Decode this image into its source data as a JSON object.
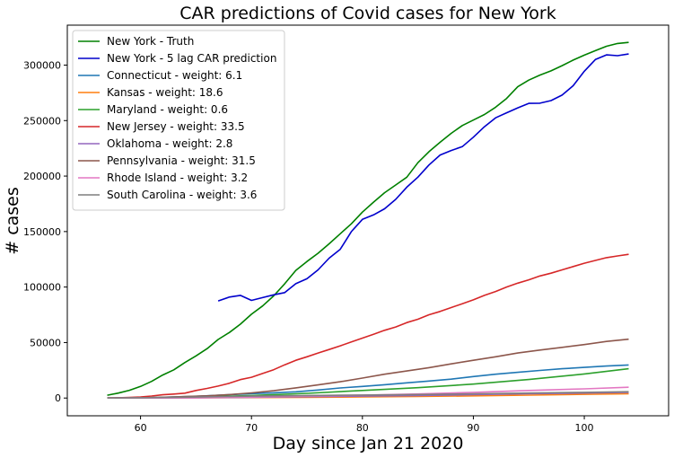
{
  "chart_data": {
    "type": "line",
    "title": "CAR predictions of Covid cases for New York",
    "xlabel": "Day since Jan 21 2020",
    "ylabel": "# cases",
    "xlim": [
      53.4,
      107.6
    ],
    "ylim": [
      -16000,
      336000
    ],
    "x_ticks": [
      60,
      70,
      80,
      90,
      100
    ],
    "y_ticks": [
      0,
      50000,
      100000,
      150000,
      200000,
      250000,
      300000
    ],
    "y_tick_labels": [
      "0",
      "50000",
      "100000",
      "150000",
      "200000",
      "250000",
      "300000"
    ],
    "grid": false,
    "legend_position": "top-left",
    "series": [
      {
        "name": "New York - Truth",
        "color": "#008000",
        "x": [
          57,
          58,
          59,
          60,
          61,
          62,
          63,
          64,
          65,
          66,
          67,
          68,
          69,
          70,
          71,
          72,
          73,
          74,
          75,
          76,
          77,
          78,
          79,
          80,
          81,
          82,
          83,
          84,
          85,
          86,
          87,
          88,
          89,
          90,
          91,
          92,
          93,
          94,
          95,
          96,
          97,
          98,
          99,
          100,
          101,
          102,
          103,
          104
        ],
        "y": [
          2500,
          4500,
          7000,
          10500,
          15000,
          20700,
          25400,
          32000,
          38000,
          44500,
          52800,
          59000,
          66500,
          75500,
          83000,
          92000,
          103000,
          115000,
          123000,
          130500,
          139000,
          148000,
          157000,
          167500,
          176500,
          185000,
          192000,
          199000,
          212000,
          222000,
          230500,
          238500,
          245500,
          250500,
          255500,
          262000,
          270000,
          280500,
          286500,
          291000,
          294800,
          299500,
          304500,
          309000,
          313000,
          317000,
          319500,
          320500
        ]
      },
      {
        "name": "New York - 5 lag CAR prediction",
        "color": "#0000cc",
        "x": [
          67,
          68,
          69,
          70,
          71,
          72,
          73,
          74,
          75,
          76,
          77,
          78,
          79,
          80,
          81,
          82,
          83,
          84,
          85,
          86,
          87,
          88,
          89,
          90,
          91,
          92,
          93,
          94,
          95,
          96,
          97,
          98,
          99,
          100,
          101,
          102,
          103,
          104
        ],
        "y": [
          87500,
          91000,
          92500,
          88000,
          90500,
          93000,
          95000,
          103000,
          107500,
          115500,
          126000,
          134000,
          150000,
          161000,
          165000,
          170500,
          179000,
          190000,
          199000,
          210000,
          219000,
          223000,
          226500,
          235000,
          244500,
          252500,
          257000,
          261500,
          265500,
          265700,
          268000,
          273000,
          281500,
          294500,
          305000,
          309200,
          308500,
          310000
        ]
      },
      {
        "name": "Connecticut - weight: 6.1",
        "color": "#1f77b4",
        "x": [
          57,
          60,
          65,
          70,
          72,
          74,
          76,
          78,
          80,
          82,
          84,
          86,
          88,
          90,
          92,
          94,
          96,
          98,
          100,
          102,
          104
        ],
        "y": [
          0,
          200,
          1600,
          4000,
          4700,
          5600,
          7200,
          9100,
          10500,
          12000,
          13700,
          15300,
          17000,
          19400,
          21500,
          23200,
          24900,
          26400,
          27600,
          28800,
          29800
        ]
      },
      {
        "name": "Kansas - weight: 18.6",
        "color": "#ff7f0e",
        "x": [
          57,
          60,
          65,
          70,
          75,
          80,
          85,
          90,
          95,
          100,
          104
        ],
        "y": [
          0,
          50,
          150,
          400,
          700,
          1000,
          1400,
          2000,
          2600,
          3300,
          3900
        ]
      },
      {
        "name": "Maryland - weight: 0.6",
        "color": "#2ca02c",
        "x": [
          57,
          60,
          65,
          70,
          75,
          80,
          85,
          90,
          95,
          100,
          104
        ],
        "y": [
          0,
          150,
          800,
          2300,
          4200,
          6800,
          9300,
          12600,
          16700,
          21700,
          26400
        ]
      },
      {
        "name": "New Jersey - weight: 33.5",
        "color": "#d62728",
        "x": [
          57,
          58,
          59,
          60,
          61,
          62,
          63,
          64,
          65,
          66,
          67,
          68,
          69,
          70,
          71,
          72,
          73,
          74,
          75,
          76,
          77,
          78,
          79,
          80,
          81,
          82,
          83,
          84,
          85,
          86,
          87,
          88,
          89,
          90,
          91,
          92,
          93,
          94,
          95,
          96,
          97,
          98,
          99,
          100,
          101,
          102,
          103,
          104
        ],
        "y": [
          0,
          300,
          600,
          1000,
          1800,
          2900,
          3600,
          4400,
          6800,
          8700,
          10800,
          13300,
          16600,
          18700,
          22100,
          25500,
          30000,
          34000,
          37200,
          40600,
          43700,
          47000,
          50500,
          54000,
          57500,
          61000,
          64000,
          68000,
          71000,
          75000,
          78000,
          81500,
          85000,
          88500,
          92500,
          96000,
          100000,
          103500,
          106500,
          110000,
          112500,
          115500,
          118500,
          121500,
          124000,
          126500,
          128000,
          129500
        ]
      },
      {
        "name": "Oklahoma - weight: 2.8",
        "color": "#9467bd",
        "x": [
          57,
          60,
          65,
          70,
          75,
          80,
          85,
          90,
          95,
          100,
          104
        ],
        "y": [
          0,
          50,
          200,
          700,
          1200,
          1700,
          2300,
          3000,
          3800,
          4500,
          5100
        ]
      },
      {
        "name": "Pennsylvania - weight: 31.5",
        "color": "#8c564b",
        "x": [
          57,
          60,
          62,
          64,
          66,
          68,
          70,
          72,
          74,
          76,
          78,
          80,
          82,
          84,
          86,
          88,
          90,
          92,
          94,
          96,
          98,
          100,
          102,
          104
        ],
        "y": [
          0,
          300,
          700,
          1300,
          2000,
          3100,
          4600,
          6600,
          9200,
          11800,
          14700,
          18000,
          21500,
          24400,
          27400,
          30800,
          34000,
          37200,
          40600,
          43200,
          45700,
          48200,
          51000,
          53000
        ]
      },
      {
        "name": "Rhode Island - weight: 3.2",
        "color": "#e377c2",
        "x": [
          57,
          60,
          65,
          70,
          75,
          80,
          85,
          90,
          95,
          100,
          104
        ],
        "y": [
          0,
          100,
          300,
          900,
          1700,
          2600,
          3700,
          5100,
          6800,
          8300,
          9700
        ]
      },
      {
        "name": "South Carolina - weight: 3.6",
        "color": "#7f7f7f",
        "x": [
          57,
          60,
          65,
          70,
          75,
          80,
          85,
          90,
          95,
          100,
          104
        ],
        "y": [
          0,
          300,
          900,
          1700,
          2300,
          2700,
          3200,
          3800,
          4500,
          5100,
          5700
        ]
      }
    ]
  }
}
